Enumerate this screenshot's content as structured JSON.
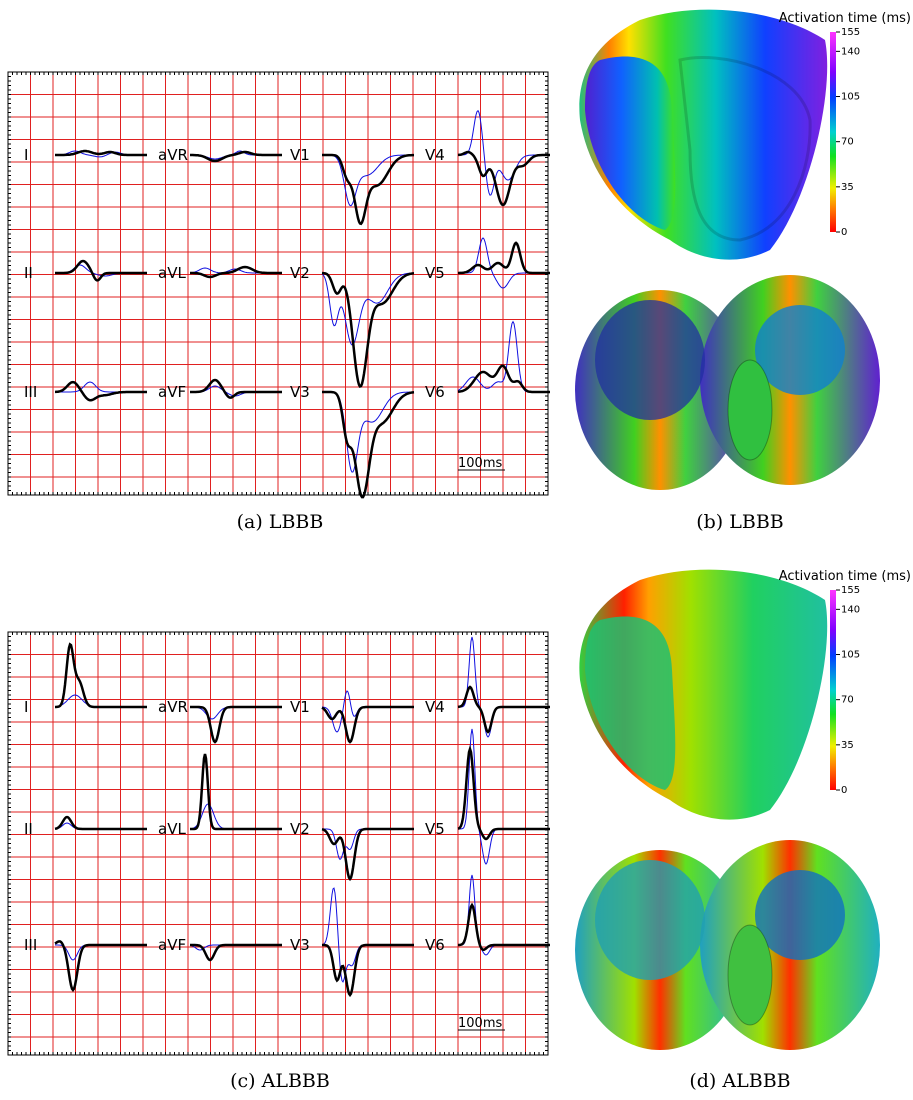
{
  "panels": [
    {
      "leads": [
        "I",
        "aVR",
        "V1",
        "V4",
        "II",
        "aVL",
        "V2",
        "V5",
        "III",
        "aVF",
        "V3",
        "V6"
      ],
      "scale_label": "100ms",
      "caption": "(a) LBBB"
    },
    {
      "caption": "(b) LBBB",
      "colorbar": {
        "title": "Activation time (ms)",
        "ticks": [
          155,
          140,
          105,
          70,
          35,
          0
        ]
      }
    },
    {
      "leads": [
        "I",
        "aVR",
        "V1",
        "V4",
        "II",
        "aVL",
        "V2",
        "V5",
        "III",
        "aVF",
        "V3",
        "V6"
      ],
      "scale_label": "100ms",
      "caption": "(c) ALBBB"
    },
    {
      "caption": "(d) ALBBB",
      "colorbar": {
        "title": "Activation time (ms)",
        "ticks": [
          155,
          140,
          105,
          70,
          35,
          0
        ]
      }
    }
  ]
}
